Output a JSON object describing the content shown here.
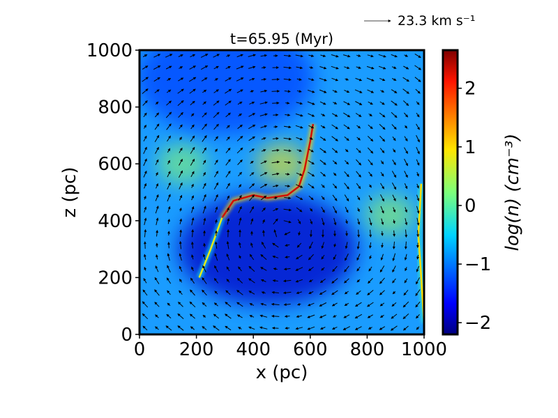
{
  "chart_data": {
    "type": "heatmap",
    "title": "t=65.95 (Myr)",
    "xlabel": "x (pc)",
    "ylabel": "z (pc)",
    "xlim": [
      0,
      1000
    ],
    "ylim": [
      0,
      1000
    ],
    "x_ticks": [
      "0",
      "200",
      "400",
      "600",
      "800",
      "1000"
    ],
    "y_ticks": [
      "0",
      "200",
      "400",
      "600",
      "800",
      "1000"
    ],
    "colorbar": {
      "label": "log(n) (cm⁻³)",
      "range": [
        -2.2,
        2.65
      ],
      "ticks": [
        "−2",
        "−1",
        "0",
        "1",
        "2"
      ],
      "tick_values": [
        -2,
        -1,
        0,
        1,
        2
      ],
      "colormap": "jet"
    },
    "quiver_key": {
      "label": "23.3 km s⁻¹",
      "value": 23.3
    },
    "density_features": [
      {
        "kind": "filament",
        "points": [
          [
            290,
            410
          ],
          [
            330,
            470
          ],
          [
            400,
            490
          ],
          [
            450,
            480
          ],
          [
            520,
            490
          ],
          [
            560,
            520
          ],
          [
            580,
            580
          ],
          [
            600,
            680
          ],
          [
            610,
            740
          ]
        ],
        "level": 2.3
      },
      {
        "kind": "filament",
        "points": [
          [
            210,
            200
          ],
          [
            250,
            300
          ],
          [
            290,
            410
          ]
        ],
        "level": 0.8
      },
      {
        "kind": "filament",
        "points": [
          [
            1000,
            40
          ],
          [
            990,
            200
          ],
          [
            980,
            350
          ],
          [
            990,
            530
          ]
        ],
        "level": 1.0
      },
      {
        "kind": "blob",
        "center": [
          500,
          600
        ],
        "level": 0.9
      },
      {
        "kind": "blob",
        "center": [
          150,
          600
        ],
        "level": 0.3
      },
      {
        "kind": "blob",
        "center": [
          880,
          420
        ],
        "level": 0.4
      },
      {
        "kind": "void",
        "center": [
          450,
          300
        ],
        "level": -1.9
      },
      {
        "kind": "void",
        "center": [
          300,
          900
        ],
        "level": -1.3
      }
    ]
  }
}
